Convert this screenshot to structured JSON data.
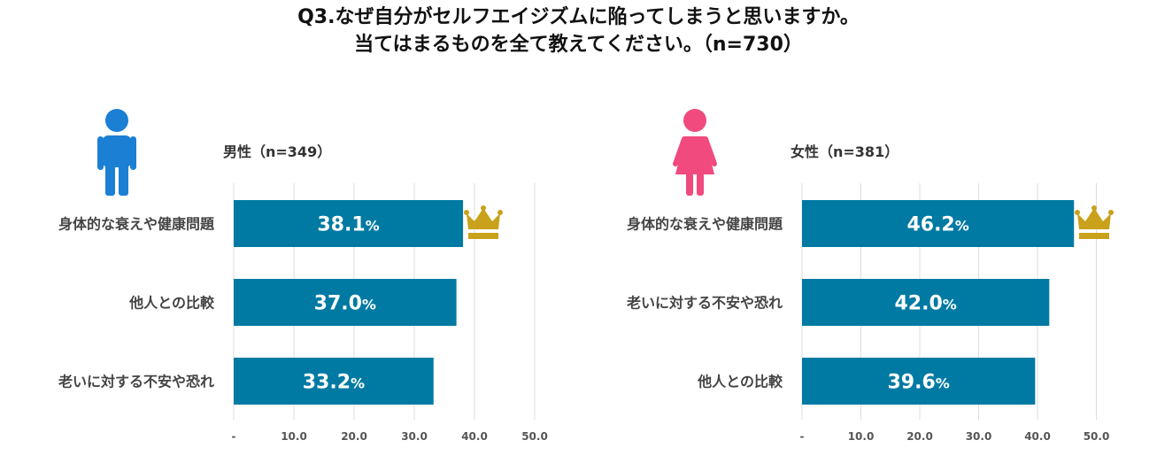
{
  "title": {
    "line1": "Q3.なぜ自分がセルフエイジズムに陥ってしまうと思いますか。",
    "line2": "当てはまるものを全て教えてください。（n=730）"
  },
  "colors": {
    "bar": "#007aa3",
    "male_icon": "#1b7fd4",
    "female_icon": "#f04a7e",
    "crown": "#c9a11a",
    "grid": "#dddddd"
  },
  "chart_data": [
    {
      "type": "bar",
      "orientation": "horizontal",
      "title": "男性（n=349）",
      "categories": [
        "身体的な衰えや健康問題",
        "他人との比較",
        "老いに対する不安や恐れ"
      ],
      "values": [
        38.1,
        37.0,
        33.2
      ],
      "value_unit": "%",
      "xlim": [
        0,
        50
      ],
      "ticks": [
        "-",
        "10.0",
        "20.0",
        "30.0",
        "40.0",
        "50.0"
      ],
      "top_marker": "crown-icon",
      "gender_icon": "male-person-icon"
    },
    {
      "type": "bar",
      "orientation": "horizontal",
      "title": "女性（n=381）",
      "categories": [
        "身体的な衰えや健康問題",
        "老いに対する不安や恐れ",
        "他人との比較"
      ],
      "values": [
        46.2,
        42.0,
        39.6
      ],
      "value_unit": "%",
      "xlim": [
        0,
        50
      ],
      "ticks": [
        "-",
        "10.0",
        "20.0",
        "30.0",
        "40.0",
        "50.0"
      ],
      "top_marker": "crown-icon",
      "gender_icon": "female-person-icon"
    }
  ]
}
